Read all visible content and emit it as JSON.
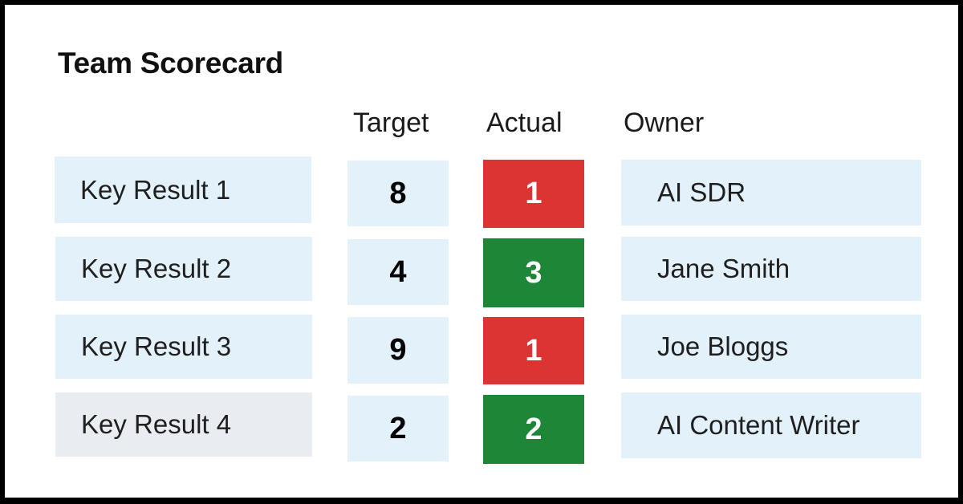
{
  "title": "Team Scorecard",
  "columns": {
    "target": "Target",
    "actual": "Actual",
    "owner": "Owner"
  },
  "colors": {
    "row_bg": "#e3f1fa",
    "row_bg_alt": "#e9edf2",
    "miss": "#db3433",
    "hit": "#1e8737"
  },
  "rows": [
    {
      "key_result": "Key Result 1",
      "target": "8",
      "actual": "1",
      "status": "miss",
      "owner": "AI SDR"
    },
    {
      "key_result": "Key Result 2",
      "target": "4",
      "actual": "3",
      "status": "hit",
      "owner": "Jane Smith"
    },
    {
      "key_result": "Key Result 3",
      "target": "9",
      "actual": "1",
      "status": "miss",
      "owner": "Joe Bloggs"
    },
    {
      "key_result": "Key Result 4",
      "target": "2",
      "actual": "2",
      "status": "hit",
      "owner": "AI Content Writer"
    }
  ]
}
